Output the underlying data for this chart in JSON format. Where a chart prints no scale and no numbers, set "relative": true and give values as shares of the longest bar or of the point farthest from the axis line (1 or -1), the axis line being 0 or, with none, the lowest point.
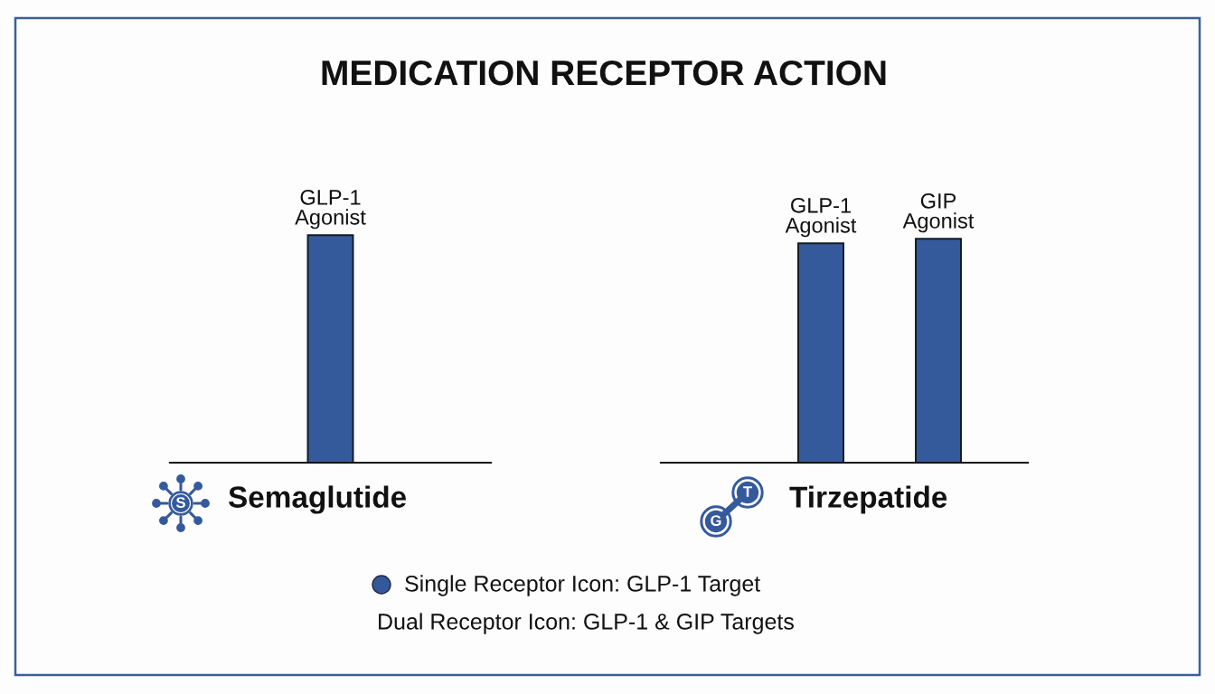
{
  "chart_data": [
    {
      "type": "bar",
      "title": "MEDICATION RECEPTOR ACTION",
      "xlabel": "Semaglutide",
      "categories": [
        "GLP-1\nAgonist"
      ],
      "values": [
        1
      ],
      "color": "#355a9c",
      "relative": true,
      "annotations": [
        "S"
      ]
    },
    {
      "type": "bar",
      "xlabel": "Tirzepatide",
      "categories": [
        "GLP-1\nAgonist",
        "GIP\nAgonist"
      ],
      "values": [
        0.98,
        1
      ],
      "color": "#355a9c",
      "relative": true,
      "annotations": [
        "G",
        "T"
      ]
    },
    {
      "type": "other",
      "color": "#34589a",
      "annotations": [
        "Single Receptor Icon: GLP-1 Target",
        "Dual Receptor Icon: GLP-1 & GIP Targets"
      ]
    }
  ]
}
